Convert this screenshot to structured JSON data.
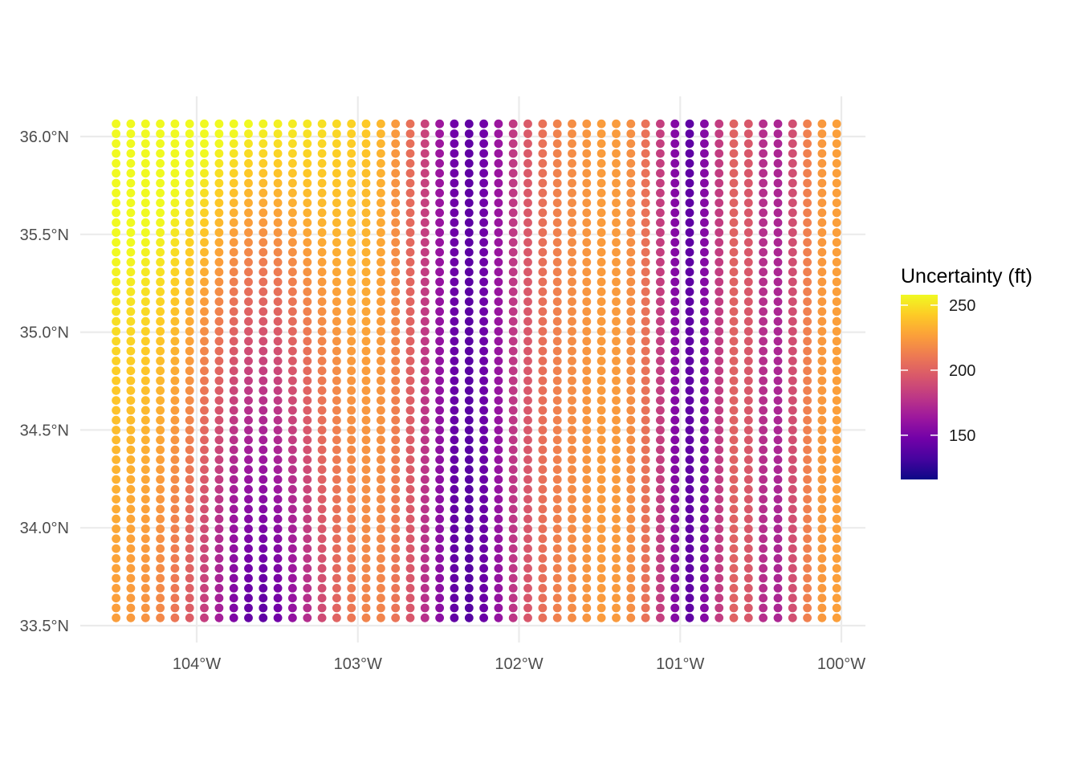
{
  "chart_data": {
    "type": "scatter",
    "title": "",
    "xlabel": "",
    "ylabel": "",
    "x_ticks": [
      -104,
      -103,
      -102,
      -101,
      -100
    ],
    "x_tick_labels": [
      "104°W",
      "103°W",
      "102°W",
      "101°W",
      "100°W"
    ],
    "y_ticks": [
      33.5,
      34.0,
      34.5,
      35.0,
      35.5,
      36.0
    ],
    "y_tick_labels": [
      "33.5°N",
      "34.0°N",
      "34.5°N",
      "35.0°N",
      "35.5°N",
      "36.0°N"
    ],
    "xlim": [
      -104.62,
      -99.97
    ],
    "ylim": [
      33.45,
      36.2
    ],
    "grid": {
      "lon_min": -104.5,
      "lon_max": -100.0,
      "lat_min": 33.54,
      "lat_max": 36.07,
      "lon_step": 0.09125,
      "lat_step": 0.0505
    },
    "value_field": "Uncertainty (ft)",
    "color_scale": {
      "name": "plasma",
      "min": 116,
      "max": 258,
      "stops": [
        "#0d0887",
        "#46039f",
        "#7201a8",
        "#9c179e",
        "#bd3786",
        "#d8576b",
        "#ed7953",
        "#fb9f3a",
        "#fdca26",
        "#f0f921"
      ]
    },
    "legend": {
      "title": "Uncertainty (ft)",
      "ticks": [
        150,
        200,
        250
      ],
      "tick_labels": [
        "150",
        "200",
        "250"
      ],
      "position": "right"
    },
    "value_model": {
      "description_columns_trough": [
        -102.32,
        -100.94,
        -103.62
      ],
      "note": ""
    },
    "grid_lines": true,
    "grid_color": "#ebebeb"
  }
}
